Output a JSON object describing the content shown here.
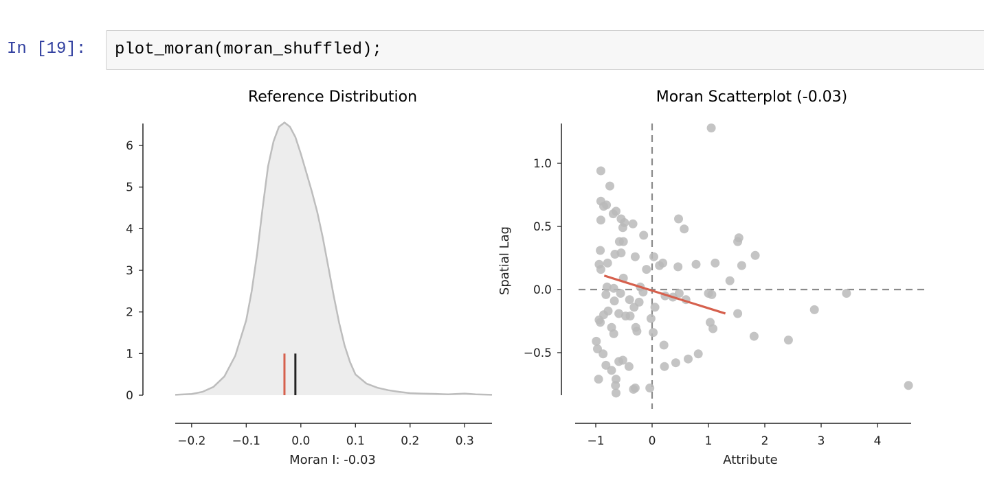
{
  "cell": {
    "prompt": "In [19]:",
    "code": "plot_moran(moran_shuffled);"
  },
  "chart_data": [
    {
      "type": "area",
      "title": "Reference Distribution",
      "xlabel": "Moran I: -0.03",
      "ylabel": "",
      "xlim": [
        -0.23,
        0.35
      ],
      "ylim": [
        0,
        6.5
      ],
      "xticks": [
        -0.2,
        -0.1,
        0.0,
        0.1,
        0.2,
        0.3
      ],
      "xtick_labels": [
        "−0.2",
        "−0.1",
        "0.0",
        "0.1",
        "0.2",
        "0.3"
      ],
      "yticks": [
        0,
        1,
        2,
        3,
        4,
        5,
        6
      ],
      "ytick_labels": [
        "0",
        "1",
        "2",
        "3",
        "4",
        "5",
        "6"
      ],
      "grid": false,
      "density": {
        "x": [
          -0.23,
          -0.2,
          -0.18,
          -0.16,
          -0.14,
          -0.12,
          -0.1,
          -0.09,
          -0.08,
          -0.07,
          -0.06,
          -0.05,
          -0.04,
          -0.03,
          -0.02,
          -0.01,
          0.0,
          0.01,
          0.02,
          0.03,
          0.04,
          0.05,
          0.06,
          0.07,
          0.08,
          0.09,
          0.1,
          0.12,
          0.14,
          0.16,
          0.18,
          0.2,
          0.22,
          0.25,
          0.27,
          0.3,
          0.32,
          0.35
        ],
        "y": [
          0.01,
          0.03,
          0.08,
          0.2,
          0.45,
          0.95,
          1.8,
          2.5,
          3.4,
          4.5,
          5.5,
          6.1,
          6.45,
          6.55,
          6.45,
          6.2,
          5.8,
          5.35,
          4.9,
          4.4,
          3.8,
          3.1,
          2.4,
          1.75,
          1.2,
          0.8,
          0.5,
          0.28,
          0.18,
          0.12,
          0.08,
          0.05,
          0.04,
          0.03,
          0.02,
          0.04,
          0.02,
          0.01
        ],
        "fill_color": "#ededed",
        "line_color": "#bdbdbd"
      },
      "markers": [
        {
          "x": -0.03,
          "height": 1.0,
          "color": "#d6604d"
        },
        {
          "x": -0.01,
          "height": 1.0,
          "color": "#222222"
        }
      ]
    },
    {
      "type": "scatter",
      "title": "Moran Scatterplot (-0.03)",
      "xlabel": "Attribute",
      "ylabel": "Spatial Lag",
      "xlim": [
        -1.05,
        4.6
      ],
      "ylim": [
        -0.92,
        1.3
      ],
      "xticks": [
        -1,
        0,
        1,
        2,
        3,
        4
      ],
      "xtick_labels": [
        "−1",
        "0",
        "1",
        "2",
        "3",
        "4"
      ],
      "yticks": [
        -0.5,
        0.0,
        0.5,
        1.0
      ],
      "ytick_labels": [
        "−0.5",
        "0.0",
        "0.5",
        "1.0"
      ],
      "grid": false,
      "point_color": "#bababa",
      "reference_lines": {
        "x": 0,
        "y": 0,
        "color": "#8a8a8a"
      },
      "fit_line": {
        "x": [
          -0.85,
          1.3
        ],
        "y": [
          0.11,
          -0.19
        ],
        "color": "#d6604d"
      },
      "points": [
        {
          "x": -0.91,
          "y": 0.94
        },
        {
          "x": -0.75,
          "y": 0.82
        },
        {
          "x": -0.91,
          "y": 0.7
        },
        {
          "x": -0.86,
          "y": 0.66
        },
        {
          "x": -0.81,
          "y": 0.67
        },
        {
          "x": -0.69,
          "y": 0.6
        },
        {
          "x": -0.64,
          "y": 0.62
        },
        {
          "x": -0.55,
          "y": 0.56
        },
        {
          "x": -0.49,
          "y": 0.53
        },
        {
          "x": -0.34,
          "y": 0.52
        },
        {
          "x": -0.91,
          "y": 0.55
        },
        {
          "x": -0.52,
          "y": 0.49
        },
        {
          "x": -0.15,
          "y": 0.43
        },
        {
          "x": -0.58,
          "y": 0.38
        },
        {
          "x": -0.51,
          "y": 0.38
        },
        {
          "x": -0.92,
          "y": 0.31
        },
        {
          "x": -0.66,
          "y": 0.28
        },
        {
          "x": -0.55,
          "y": 0.29
        },
        {
          "x": -0.3,
          "y": 0.26
        },
        {
          "x": -0.79,
          "y": 0.21
        },
        {
          "x": -0.94,
          "y": 0.2
        },
        {
          "x": -0.91,
          "y": 0.16
        },
        {
          "x": -0.1,
          "y": 0.16
        },
        {
          "x": 0.03,
          "y": 0.26
        },
        {
          "x": 0.13,
          "y": 0.19
        },
        {
          "x": 0.19,
          "y": 0.21
        },
        {
          "x": 0.46,
          "y": 0.18
        },
        {
          "x": 0.78,
          "y": 0.2
        },
        {
          "x": 0.47,
          "y": 0.56
        },
        {
          "x": 0.57,
          "y": 0.48
        },
        {
          "x": 1.05,
          "y": 1.28
        },
        {
          "x": 1.52,
          "y": 0.38
        },
        {
          "x": 1.54,
          "y": 0.41
        },
        {
          "x": 1.59,
          "y": 0.19
        },
        {
          "x": 1.83,
          "y": 0.27
        },
        {
          "x": 1.12,
          "y": 0.21
        },
        {
          "x": 1.38,
          "y": 0.07
        },
        {
          "x": 3.45,
          "y": -0.03
        },
        {
          "x": 2.88,
          "y": -0.16
        },
        {
          "x": 2.42,
          "y": -0.4
        },
        {
          "x": 1.81,
          "y": -0.37
        },
        {
          "x": 1.52,
          "y": -0.19
        },
        {
          "x": 4.55,
          "y": -0.76
        },
        {
          "x": 1.0,
          "y": -0.03
        },
        {
          "x": 1.06,
          "y": -0.04
        },
        {
          "x": 1.03,
          "y": -0.26
        },
        {
          "x": 1.08,
          "y": -0.31
        },
        {
          "x": 0.82,
          "y": -0.51
        },
        {
          "x": 0.64,
          "y": -0.55
        },
        {
          "x": 0.42,
          "y": -0.58
        },
        {
          "x": 0.22,
          "y": -0.61
        },
        {
          "x": 0.21,
          "y": -0.44
        },
        {
          "x": 0.48,
          "y": -0.03
        },
        {
          "x": 0.6,
          "y": -0.08
        },
        {
          "x": 0.37,
          "y": -0.06
        },
        {
          "x": 0.23,
          "y": -0.05
        },
        {
          "x": 0.02,
          "y": -0.34
        },
        {
          "x": -0.02,
          "y": -0.23
        },
        {
          "x": -0.04,
          "y": -0.78
        },
        {
          "x": -0.33,
          "y": -0.79
        },
        {
          "x": -0.3,
          "y": -0.78
        },
        {
          "x": -0.64,
          "y": -0.82
        },
        {
          "x": -0.65,
          "y": -0.76
        },
        {
          "x": -0.64,
          "y": -0.71
        },
        {
          "x": -0.72,
          "y": -0.64
        },
        {
          "x": -0.82,
          "y": -0.6
        },
        {
          "x": -0.95,
          "y": -0.71
        },
        {
          "x": -0.41,
          "y": -0.61
        },
        {
          "x": -0.52,
          "y": -0.56
        },
        {
          "x": -0.59,
          "y": -0.57
        },
        {
          "x": -0.99,
          "y": -0.41
        },
        {
          "x": -0.97,
          "y": -0.47
        },
        {
          "x": -0.87,
          "y": -0.51
        },
        {
          "x": -0.72,
          "y": -0.3
        },
        {
          "x": -0.68,
          "y": -0.35
        },
        {
          "x": -0.92,
          "y": -0.26
        },
        {
          "x": -0.94,
          "y": -0.24
        },
        {
          "x": -0.86,
          "y": -0.2
        },
        {
          "x": -0.78,
          "y": -0.17
        },
        {
          "x": -0.59,
          "y": -0.19
        },
        {
          "x": -0.47,
          "y": -0.21
        },
        {
          "x": -0.39,
          "y": -0.21
        },
        {
          "x": -0.29,
          "y": -0.3
        },
        {
          "x": -0.27,
          "y": -0.33
        },
        {
          "x": -0.32,
          "y": -0.14
        },
        {
          "x": -0.23,
          "y": -0.1
        },
        {
          "x": -0.67,
          "y": -0.09
        },
        {
          "x": -0.4,
          "y": -0.08
        },
        {
          "x": -0.16,
          "y": -0.02
        },
        {
          "x": -0.21,
          "y": 0.02
        },
        {
          "x": -0.51,
          "y": 0.09
        },
        {
          "x": -0.8,
          "y": 0.02
        },
        {
          "x": -0.68,
          "y": 0.01
        },
        {
          "x": -0.82,
          "y": -0.04
        },
        {
          "x": -0.56,
          "y": -0.03
        },
        {
          "x": 0.05,
          "y": -0.14
        }
      ]
    }
  ]
}
